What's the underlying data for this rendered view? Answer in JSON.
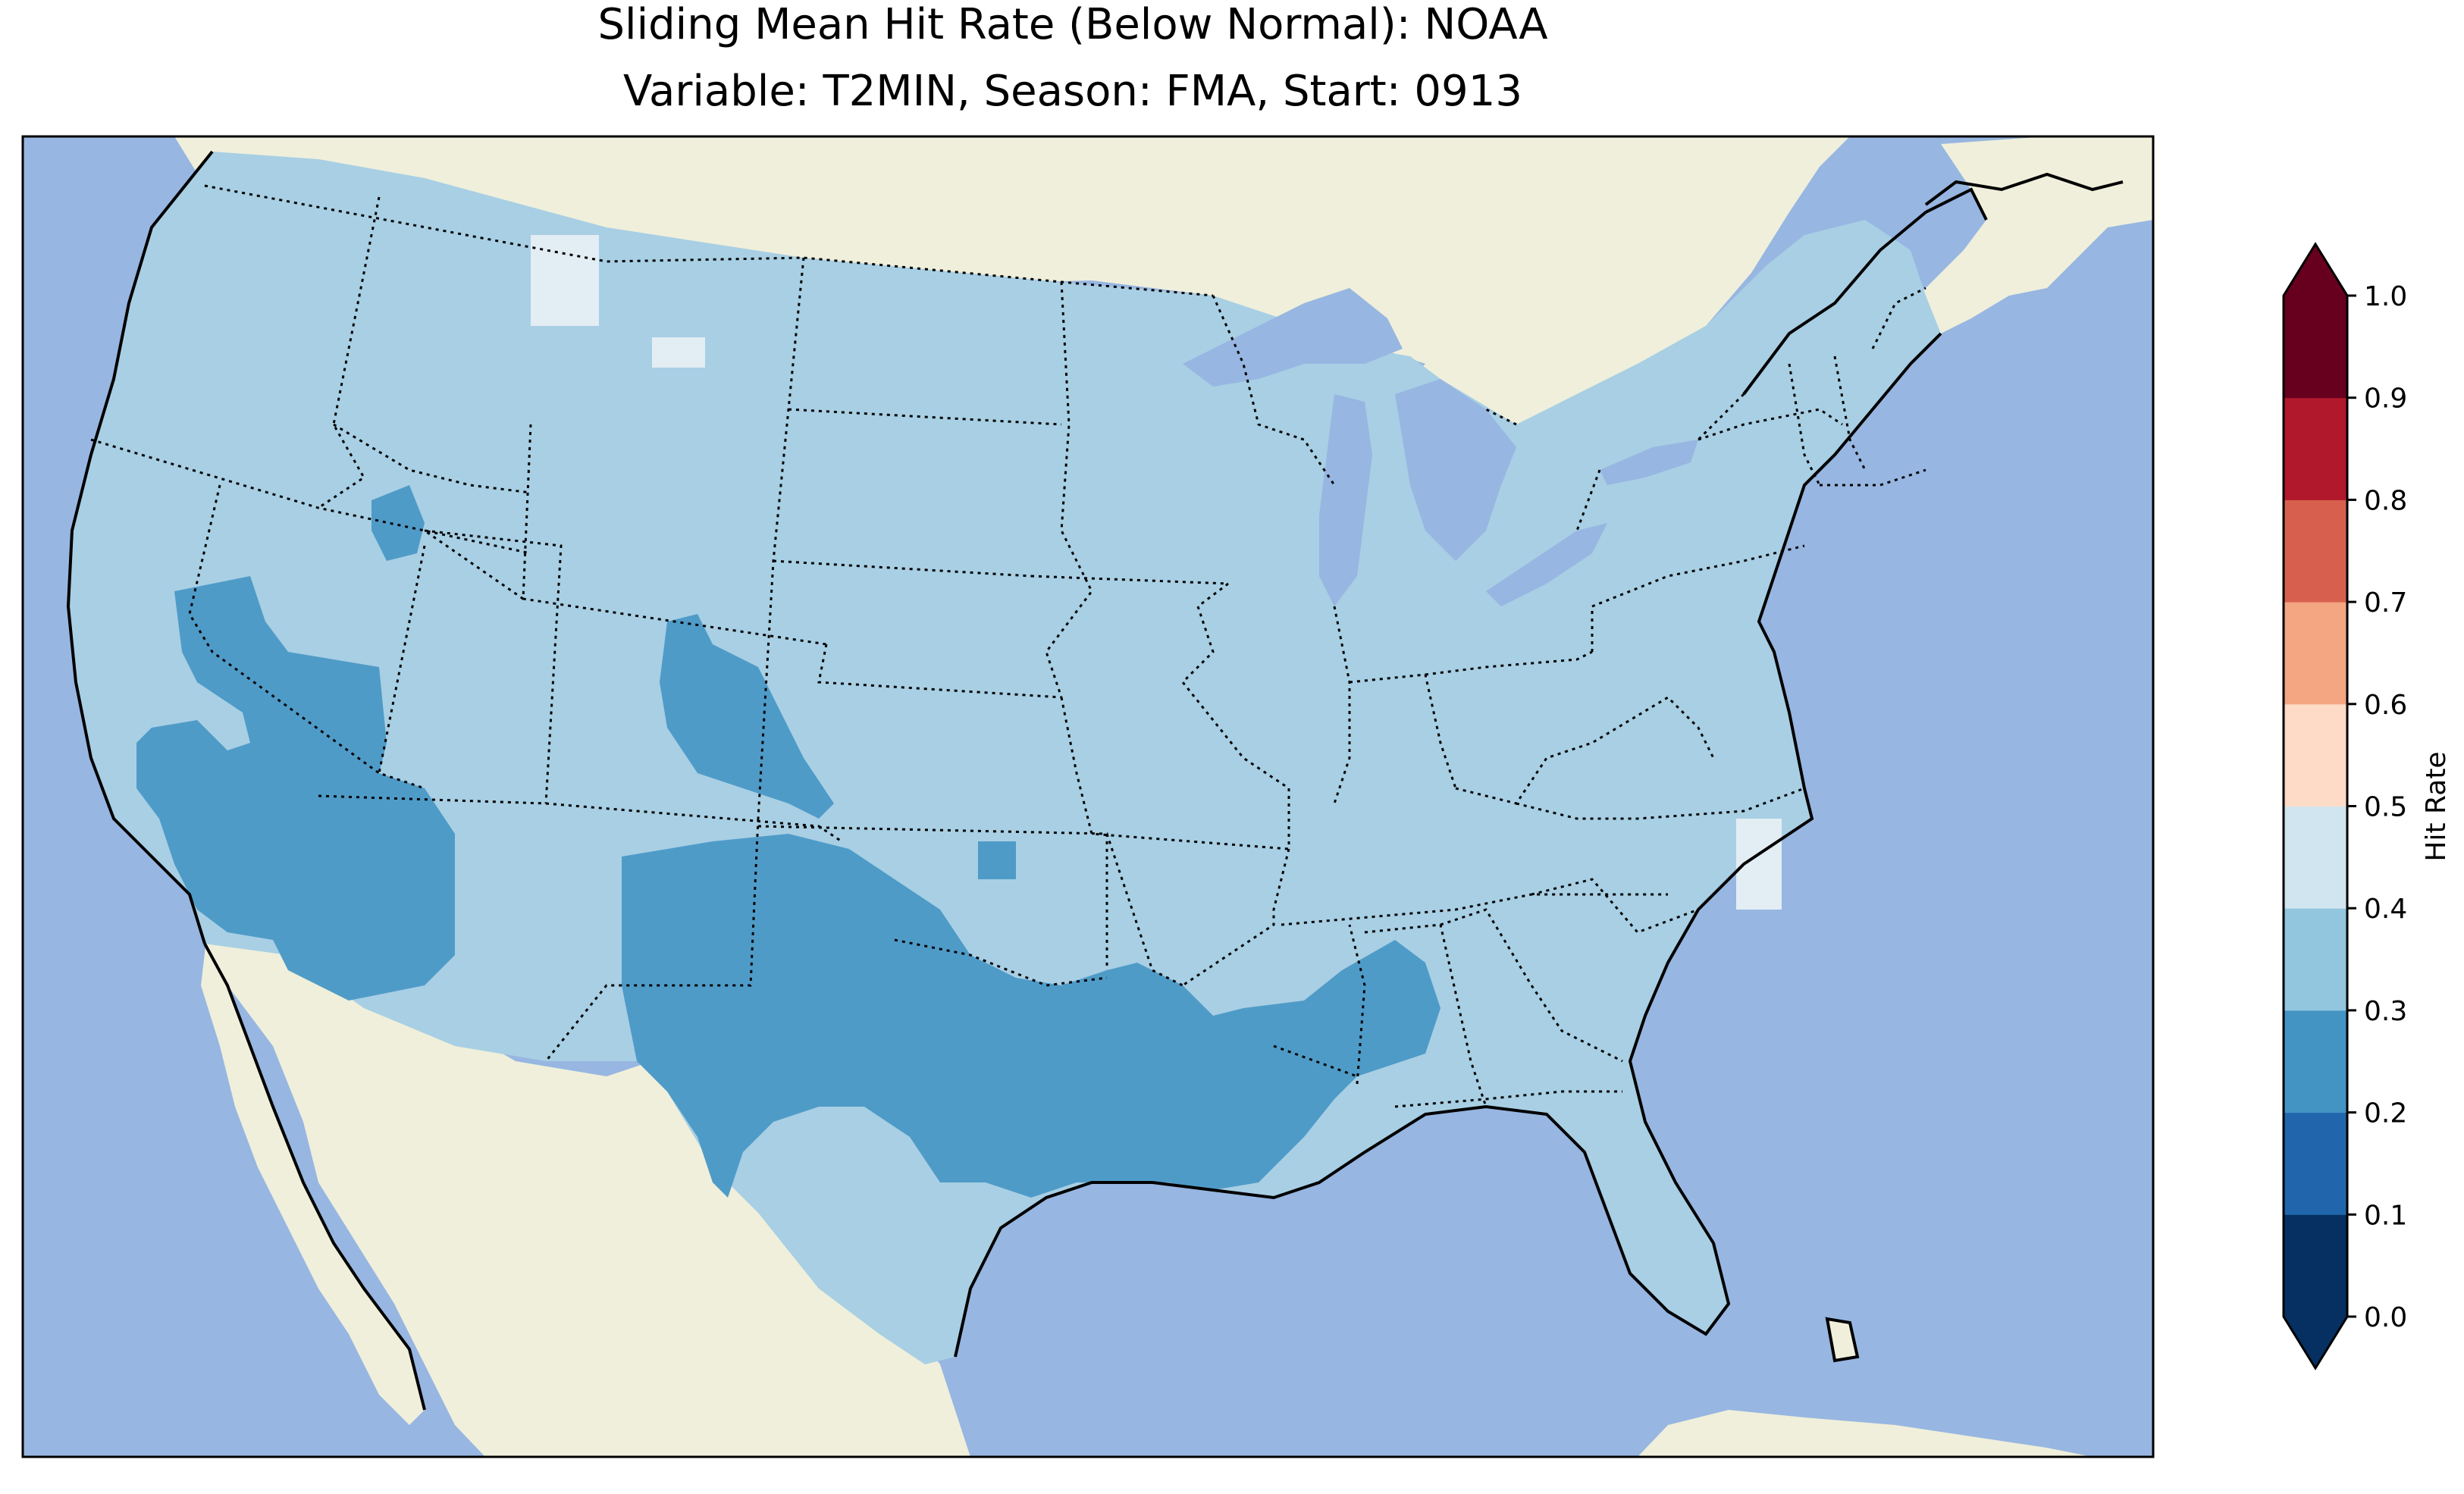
{
  "title": {
    "line1": "Sliding Mean Hit Rate (Below Normal): NOAA",
    "line2": "Variable: T2MIN, Season: FMA, Start: 0913"
  },
  "colors": {
    "ocean": "#97b6e1",
    "land": "#efefdb",
    "hr_0_2_0_3": "#4f9bc8",
    "hr_0_3_0_4": "#a8cfe4",
    "hr_0_4_0_5": "#e3edf4"
  },
  "colorbar": {
    "label": "Hit Rate",
    "ticks": [
      "0.0",
      "0.1",
      "0.2",
      "0.3",
      "0.4",
      "0.5",
      "0.6",
      "0.7",
      "0.8",
      "0.9",
      "1.0"
    ],
    "colors": [
      "#053061",
      "#2166ac",
      "#4393c3",
      "#92c5de",
      "#d1e5f0",
      "#fddbc7",
      "#f4a582",
      "#d6604d",
      "#b2182b",
      "#67001f"
    ],
    "under_color": "#053061",
    "over_color": "#67001f",
    "extend": "both"
  },
  "map_layers": {
    "coastlines": "black solid",
    "state_borders": "black dotted",
    "lakes": "ocean color",
    "dominant_hit_rate_band": "0.3-0.4",
    "southwest_and_south_band": "0.2-0.3",
    "isolated_pixels_band": "0.4-0.5"
  }
}
